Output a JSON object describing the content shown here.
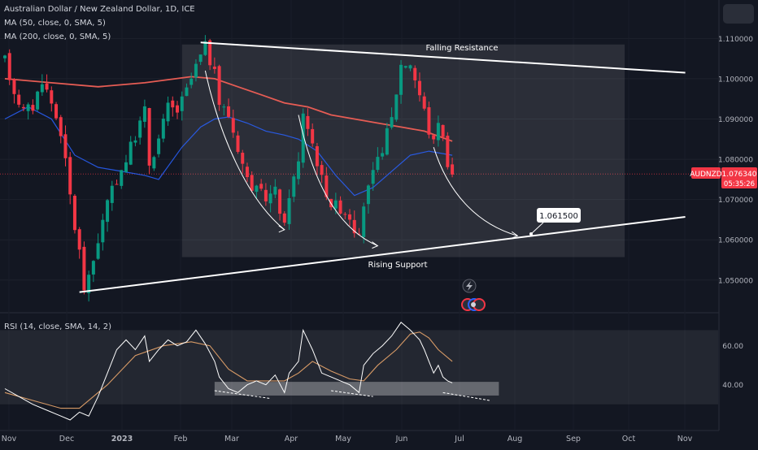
{
  "legend": {
    "title": "Australian Dollar / New Zealand Dollar, 1D, ICE",
    "ma50": "MA (50, close, 0, SMA, 5)",
    "ma200": "MA (200, close, 0, SMA, 5)",
    "rsi": "RSI (14, close, SMA, 14, 2)"
  },
  "price_badge": {
    "symbol": "AUDNZD",
    "price": "1.076340",
    "countdown": "05:35:26"
  },
  "annotations": {
    "falling_resistance": "Falling Resistance",
    "rising_support": "Rising Support",
    "target": "1.061500"
  },
  "colors": {
    "background": "#131722",
    "up": "#089981",
    "down": "#f23645",
    "ma50": "#2962ff",
    "ma200": "#e65c54",
    "rsi": "#ffffff",
    "rsi_ma": "#d79a66",
    "badge": "#f23645"
  },
  "icons": [
    "lightning-icon",
    "event-flags-icon"
  ],
  "chart_data": [
    {
      "type": "candlestick",
      "symbol": "AUDNZD",
      "timeframe": "1D",
      "x_ticks": [
        "Nov",
        "Dec",
        "2023",
        "Feb",
        "Mar",
        "Apr",
        "May",
        "Jun",
        "Jul",
        "Aug",
        "Sep",
        "Oct",
        "Nov"
      ],
      "y_ticks": [
        "1.110000",
        "1.100000",
        "1.090000",
        "1.080000",
        "1.070000",
        "1.060000",
        "1.050000"
      ],
      "ylim": [
        1.0435,
        1.1135
      ],
      "last_price": 1.07634,
      "price_path": [
        [
          0,
          1.1045
        ],
        [
          2,
          1.097
        ],
        [
          4,
          1.092
        ],
        [
          6,
          1.093
        ],
        [
          8,
          1.1
        ],
        [
          10,
          1.094
        ],
        [
          12,
          1.087
        ],
        [
          13,
          1.079
        ],
        [
          14,
          1.071
        ],
        [
          15,
          1.063
        ],
        [
          16,
          1.057
        ],
        [
          17,
          1.048
        ],
        [
          18,
          1.05
        ],
        [
          20,
          1.06
        ],
        [
          22,
          1.069
        ],
        [
          24,
          1.075
        ],
        [
          26,
          1.08
        ],
        [
          28,
          1.086
        ],
        [
          30,
          1.092
        ],
        [
          31,
          1.079
        ],
        [
          33,
          1.085
        ],
        [
          35,
          1.093
        ],
        [
          37,
          1.092
        ],
        [
          39,
          1.097
        ],
        [
          41,
          1.103
        ],
        [
          43,
          1.108
        ],
        [
          45,
          1.101
        ],
        [
          46,
          1.094
        ],
        [
          48,
          1.091
        ],
        [
          50,
          1.083
        ],
        [
          52,
          1.075
        ],
        [
          54,
          1.072
        ],
        [
          56,
          1.0705
        ],
        [
          58,
          1.072
        ],
        [
          60,
          1.063
        ],
        [
          61,
          1.0715
        ],
        [
          63,
          1.079
        ],
        [
          64,
          1.092
        ],
        [
          66,
          1.084
        ],
        [
          68,
          1.075
        ],
        [
          70,
          1.069
        ],
        [
          72,
          1.068
        ],
        [
          74,
          1.066
        ],
        [
          76,
          1.06
        ],
        [
          77,
          1.069
        ],
        [
          79,
          1.076
        ],
        [
          81,
          1.083
        ],
        [
          83,
          1.09
        ],
        [
          85,
          1.1035
        ],
        [
          87,
          1.104
        ],
        [
          89,
          1.096
        ],
        [
          90,
          1.092
        ],
        [
          91,
          1.087
        ],
        [
          92,
          1.084
        ],
        [
          93,
          1.09
        ],
        [
          94,
          1.085
        ],
        [
          95,
          1.0795
        ],
        [
          96,
          1.0765
        ]
      ],
      "ma50_path": [
        [
          0,
          1.09
        ],
        [
          5,
          1.093
        ],
        [
          10,
          1.09
        ],
        [
          15,
          1.081
        ],
        [
          20,
          1.078
        ],
        [
          25,
          1.077
        ],
        [
          30,
          1.076
        ],
        [
          33,
          1.075
        ],
        [
          38,
          1.083
        ],
        [
          42,
          1.088
        ],
        [
          45,
          1.09
        ],
        [
          48,
          1.0905
        ],
        [
          52,
          1.089
        ],
        [
          56,
          1.087
        ],
        [
          60,
          1.086
        ],
        [
          63,
          1.085
        ],
        [
          67,
          1.082
        ],
        [
          71,
          1.076
        ],
        [
          75,
          1.071
        ],
        [
          79,
          1.073
        ],
        [
          83,
          1.077
        ],
        [
          87,
          1.081
        ],
        [
          91,
          1.082
        ],
        [
          96,
          1.081
        ]
      ],
      "ma200_path": [
        [
          0,
          1.1
        ],
        [
          10,
          1.099
        ],
        [
          20,
          1.098
        ],
        [
          30,
          1.099
        ],
        [
          40,
          1.1005
        ],
        [
          45,
          1.1
        ],
        [
          50,
          1.098
        ],
        [
          55,
          1.096
        ],
        [
          60,
          1.094
        ],
        [
          65,
          1.093
        ],
        [
          70,
          1.091
        ],
        [
          75,
          1.09
        ],
        [
          80,
          1.089
        ],
        [
          85,
          1.088
        ],
        [
          90,
          1.087
        ],
        [
          96,
          1.0845
        ]
      ],
      "falling_resistance": [
        [
          42,
          1.109
        ],
        [
          146,
          1.1015
        ]
      ],
      "rising_support": [
        [
          16,
          1.047
        ],
        [
          146,
          1.0657
        ]
      ],
      "target_price": 1.0615,
      "highlight_box": {
        "x": [
          38,
          133
        ],
        "y": [
          1.0557,
          1.1085
        ]
      }
    },
    {
      "type": "line",
      "indicator": "RSI (14, close, SMA, 14, 2)",
      "y_ticks": [
        "60.00",
        "40.00"
      ],
      "ylim": [
        22,
        74
      ],
      "rsi_path": [
        [
          0,
          38
        ],
        [
          3,
          34
        ],
        [
          6,
          30
        ],
        [
          9,
          27
        ],
        [
          12,
          24
        ],
        [
          14,
          22
        ],
        [
          16,
          26
        ],
        [
          18,
          24
        ],
        [
          20,
          34
        ],
        [
          22,
          46
        ],
        [
          24,
          58
        ],
        [
          26,
          63
        ],
        [
          28,
          58
        ],
        [
          30,
          65
        ],
        [
          31,
          52
        ],
        [
          33,
          58
        ],
        [
          35,
          63
        ],
        [
          37,
          60
        ],
        [
          39,
          62
        ],
        [
          41,
          68
        ],
        [
          43,
          61
        ],
        [
          45,
          52
        ],
        [
          46,
          44
        ],
        [
          48,
          38
        ],
        [
          50,
          36
        ],
        [
          52,
          40
        ],
        [
          54,
          42
        ],
        [
          56,
          40
        ],
        [
          58,
          45
        ],
        [
          60,
          36
        ],
        [
          61,
          46
        ],
        [
          63,
          52
        ],
        [
          64,
          68
        ],
        [
          66,
          58
        ],
        [
          68,
          46
        ],
        [
          70,
          44
        ],
        [
          72,
          42
        ],
        [
          74,
          40
        ],
        [
          76,
          36
        ],
        [
          77,
          50
        ],
        [
          79,
          56
        ],
        [
          81,
          60
        ],
        [
          83,
          65
        ],
        [
          85,
          72
        ],
        [
          87,
          68
        ],
        [
          89,
          63
        ],
        [
          90,
          58
        ],
        [
          91,
          52
        ],
        [
          92,
          46
        ],
        [
          93,
          50
        ],
        [
          94,
          44
        ],
        [
          95,
          42
        ],
        [
          96,
          41
        ]
      ],
      "rsi_ma_path": [
        [
          0,
          36
        ],
        [
          6,
          32
        ],
        [
          12,
          28
        ],
        [
          16,
          28
        ],
        [
          22,
          40
        ],
        [
          28,
          55
        ],
        [
          34,
          60
        ],
        [
          40,
          62
        ],
        [
          44,
          60
        ],
        [
          48,
          48
        ],
        [
          52,
          42
        ],
        [
          56,
          42
        ],
        [
          60,
          42
        ],
        [
          63,
          46
        ],
        [
          66,
          52
        ],
        [
          70,
          47
        ],
        [
          74,
          43
        ],
        [
          77,
          42
        ],
        [
          80,
          50
        ],
        [
          84,
          58
        ],
        [
          87,
          66
        ],
        [
          89,
          67
        ],
        [
          91,
          64
        ],
        [
          93,
          58
        ],
        [
          96,
          52
        ]
      ],
      "highlight_box": {
        "x": [
          45,
          106
        ],
        "y": [
          34.5,
          41.5
        ]
      }
    }
  ]
}
